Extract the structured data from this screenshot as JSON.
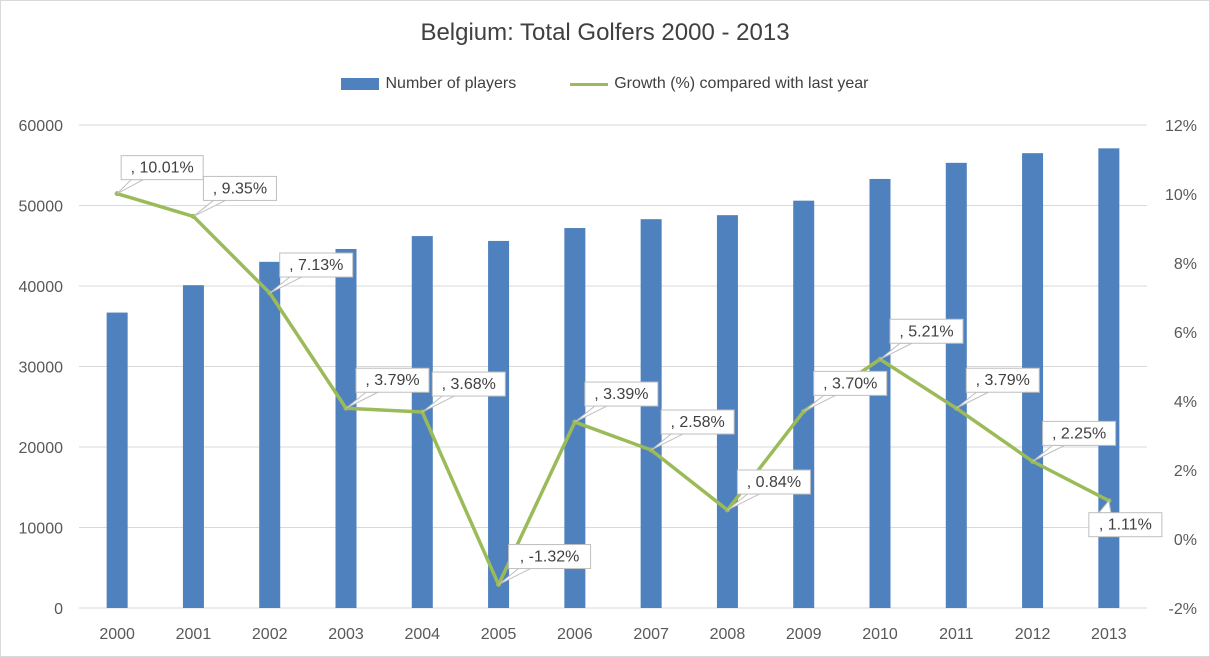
{
  "chart_data": {
    "type": "bar",
    "title": "Belgium: Total Golfers 2000 - 2013",
    "categories": [
      "2000",
      "2001",
      "2002",
      "2003",
      "2004",
      "2005",
      "2006",
      "2007",
      "2008",
      "2009",
      "2010",
      "2011",
      "2012",
      "2013"
    ],
    "series": [
      {
        "name": "Number of players",
        "type": "bar",
        "axis": "left",
        "color": "#4e81bd",
        "values": [
          36700,
          40100,
          43000,
          44600,
          46200,
          45600,
          47200,
          48300,
          48800,
          50600,
          53300,
          55300,
          56500,
          57100
        ]
      },
      {
        "name": "Growth (%) compared with last year",
        "type": "line",
        "axis": "right",
        "color": "#9bbb59",
        "values": [
          10.01,
          9.35,
          7.13,
          3.79,
          3.68,
          -1.32,
          3.39,
          2.58,
          0.84,
          3.7,
          5.21,
          3.79,
          2.25,
          1.11
        ],
        "labels": [
          ", 10.01%",
          ", 9.35%",
          ", 7.13%",
          ", 3.79%",
          ", 3.68%",
          ", -1.32%",
          ", 3.39%",
          ", 2.58%",
          ", 0.84%",
          ", 3.70%",
          ", 5.21%",
          ", 3.79%",
          ", 2.25%",
          ", 1.11%"
        ]
      }
    ],
    "y_left": {
      "min": 0,
      "max": 60000,
      "ticks": [
        "0",
        "10000",
        "20000",
        "30000",
        "40000",
        "50000",
        "60000"
      ]
    },
    "y_right": {
      "min": -2,
      "max": 12,
      "ticks": [
        "-2%",
        "0%",
        "2%",
        "4%",
        "6%",
        "8%",
        "10%",
        "12%"
      ]
    },
    "grid": true,
    "legend_position": "top"
  }
}
